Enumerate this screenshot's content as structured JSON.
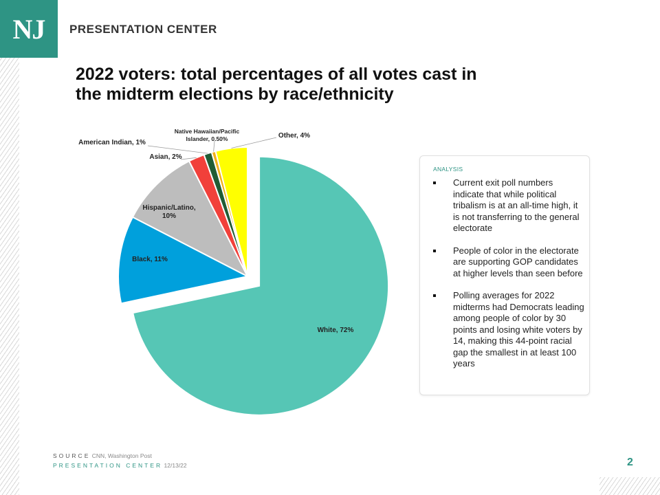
{
  "brand": {
    "logo": "NJ",
    "name": "PRESENTATION CENTER",
    "color": "#2e9484"
  },
  "title": {
    "line1": "2022 voters: total percentages of all votes cast in",
    "line2": "the midterm elections by race/ethnicity"
  },
  "chart_data": {
    "type": "pie",
    "title": "2022 voters: total percentages of all votes cast in the midterm elections by race/ethnicity",
    "start_category": "White",
    "exploded": "White",
    "slices": [
      {
        "name": "White",
        "value": 72,
        "label": "White, 72%",
        "color": "#56c6b5"
      },
      {
        "name": "Black",
        "value": 11,
        "label": "Black, 11%",
        "color": "#00a0dc"
      },
      {
        "name": "Hispanic/Latino",
        "value": 10,
        "label": "Hispanic/Latino,",
        "label2": "10%",
        "color": "#bdbdbd"
      },
      {
        "name": "Asian",
        "value": 2,
        "label": "Asian, 2%",
        "color": "#f1403a"
      },
      {
        "name": "American Indian",
        "value": 1,
        "label": "American Indian, 1%",
        "color": "#215c34"
      },
      {
        "name": "Native Hawaiian/Pacific Islander",
        "value": 0.5,
        "label": "Native Hawaiian/Pacific",
        "label2": "Islander, 0.50%",
        "color": "#f2b21b"
      },
      {
        "name": "Other",
        "value": 4,
        "label": "Other, 4%",
        "color": "#ffff00"
      }
    ]
  },
  "analysis": {
    "heading": "ANALYSIS",
    "bullets": [
      "Current exit poll numbers indicate that while political tribalism is at an all-time high, it is not transferring to the general electorate",
      "People of color in the electorate are supporting GOP candidates at higher levels than seen before",
      "Polling averages for 2022 midterms had Democrats leading among people of color by 30 points and losing white voters by 14, making this 44-point racial gap the smallest in at least 100 years"
    ]
  },
  "footer": {
    "source_key": "SOURCE",
    "source_value": "CNN, Washington Post",
    "center_key": "PRESENTATION CENTER",
    "date": "12/13/22",
    "page": "2"
  }
}
